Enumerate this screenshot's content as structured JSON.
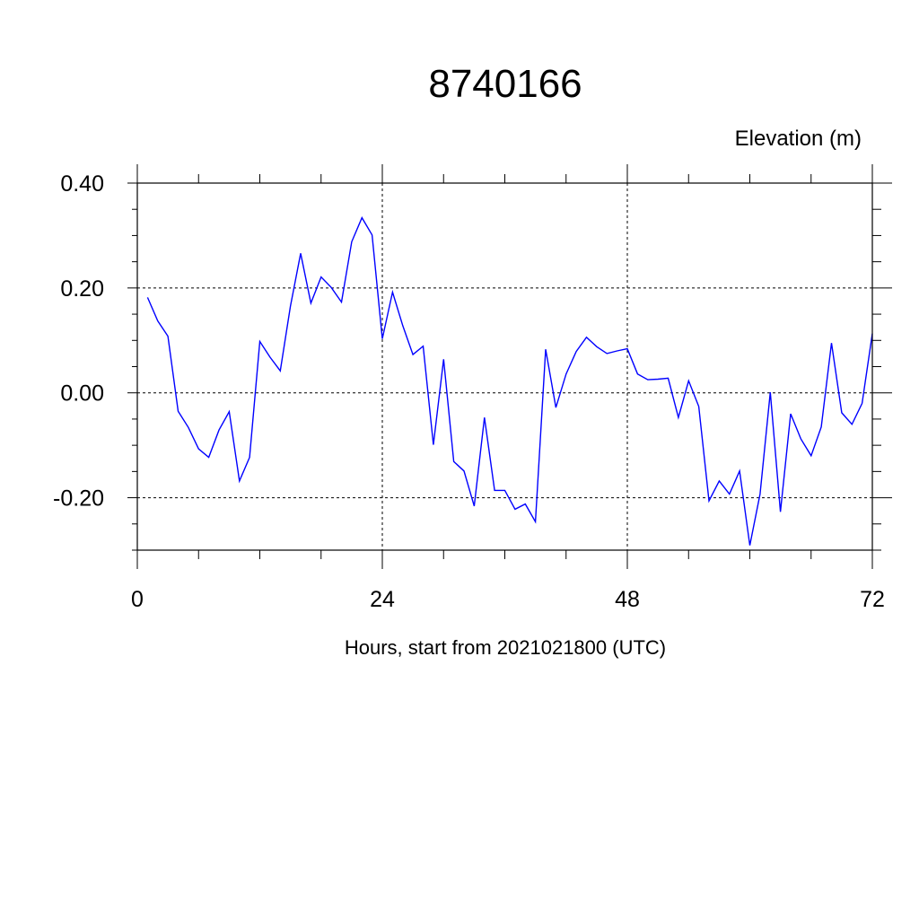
{
  "chart_data": {
    "type": "line",
    "title": "8740166",
    "ylabel": "Elevation (m)",
    "xlabel": "Hours, start from 2021021800 (UTC)",
    "xlim": [
      0,
      72
    ],
    "ylim": [
      -0.3,
      0.4
    ],
    "x_ticks": [
      0,
      24,
      48,
      72
    ],
    "x_tick_labels": [
      "0",
      "24",
      "48",
      "72"
    ],
    "y_ticks": [
      0.4,
      0.2,
      0.0,
      -0.2
    ],
    "y_tick_labels": [
      "0.40",
      "0.20",
      "0.00",
      "-0.20"
    ],
    "grid": "dashed at major ticks",
    "series": [
      {
        "color": "#0000ff",
        "x": [
          1,
          2,
          3,
          4,
          5,
          6,
          7,
          8,
          9,
          10,
          11,
          12,
          13,
          14,
          15,
          16,
          17,
          18,
          19,
          20,
          21,
          22,
          23,
          24,
          25,
          26,
          27,
          28,
          29,
          30,
          31,
          32,
          33,
          34,
          35,
          36,
          37,
          38,
          39,
          40,
          41,
          42,
          43,
          44,
          45,
          46,
          47,
          48,
          49,
          50,
          51,
          52,
          53,
          54,
          55,
          56,
          57,
          58,
          59,
          60,
          61,
          62,
          63,
          64,
          65,
          66,
          67,
          68,
          69,
          70,
          71,
          72
        ],
        "values": [
          0.182,
          0.137,
          0.108,
          -0.035,
          -0.066,
          -0.107,
          -0.123,
          -0.071,
          -0.036,
          -0.168,
          -0.123,
          0.098,
          0.068,
          0.042,
          0.165,
          0.266,
          0.171,
          0.221,
          0.201,
          0.173,
          0.288,
          0.334,
          0.301,
          0.103,
          0.192,
          0.128,
          0.073,
          0.089,
          -0.099,
          0.064,
          -0.131,
          -0.149,
          -0.216,
          -0.047,
          -0.186,
          -0.186,
          -0.222,
          -0.212,
          -0.246,
          0.083,
          -0.028,
          0.036,
          0.079,
          0.106,
          0.088,
          0.075,
          0.08,
          0.084,
          0.036,
          0.025,
          0.026,
          0.028,
          -0.047,
          0.023,
          -0.026,
          -0.206,
          -0.168,
          -0.193,
          -0.149,
          -0.291,
          -0.193,
          0.001,
          -0.227,
          -0.04,
          -0.088,
          -0.12,
          -0.065,
          0.095,
          -0.038,
          -0.06,
          -0.02,
          0.113
        ]
      }
    ]
  }
}
